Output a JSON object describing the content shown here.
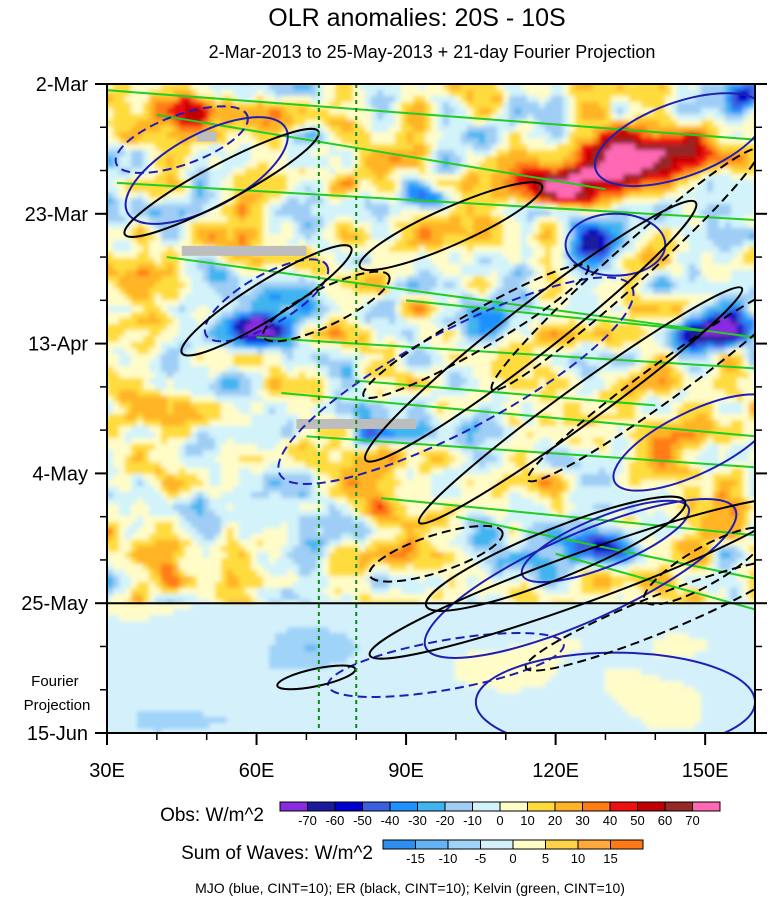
{
  "chart_data": {
    "type": "heatmap",
    "title": "OLR anomalies: 20S - 10S",
    "subtitle": "2-Mar-2013 to 25-May-2013 + 21-day Fourier Projection",
    "x_axis": {
      "range": [
        30,
        160
      ],
      "ticks": [
        30,
        60,
        90,
        120,
        150
      ],
      "tick_labels": [
        "30E",
        "60E",
        "90E",
        "120E",
        "150E"
      ],
      "minor_ticks": [
        40,
        50,
        70,
        80,
        100,
        110,
        130,
        140
      ]
    },
    "y_axis": {
      "start_date": "2-Mar",
      "days_total": 105,
      "ticks_day": [
        0,
        21,
        42,
        63,
        84,
        105
      ],
      "tick_labels": [
        "2-Mar",
        "23-Mar",
        "13-Apr",
        "4-May",
        "25-May",
        "15-Jun"
      ],
      "minor_ticks_day": [
        7,
        14,
        28,
        35,
        49,
        56,
        70,
        77,
        91,
        98
      ]
    },
    "observation_end_day": 84,
    "projection_label_lines": [
      "Fourier",
      "Projection"
    ],
    "reference_lines_lon": [
      72.5,
      80
    ],
    "obs_colorbar": {
      "label": "Obs: W/m^2",
      "levels": [
        -70,
        -60,
        -50,
        -40,
        -30,
        -20,
        -10,
        0,
        10,
        20,
        30,
        40,
        50,
        60,
        70
      ],
      "colors": [
        "#8a2be2",
        "#1a1a9c",
        "#0000cd",
        "#3a5fe0",
        "#1e90ff",
        "#3fb4f0",
        "#9fcdf5",
        "#d2f3fa",
        "#fffcc8",
        "#ffdc3c",
        "#ffb428",
        "#ff7c14",
        "#ee1010",
        "#c00000",
        "#962828",
        "#ff69b4"
      ]
    },
    "waves_colorbar": {
      "label": "Sum of Waves: W/m^2",
      "levels": [
        -15,
        -10,
        -5,
        0,
        5,
        10,
        15
      ],
      "colors": [
        "#2e8ef0",
        "#64b4f5",
        "#9fd3f8",
        "#d4f1fb",
        "#fffcc8",
        "#ffd24a",
        "#ffaa3a",
        "#ff7a14"
      ]
    },
    "overlay_legend": "MJO (blue, CINT=10); ER (black, CINT=10); Kelvin (green, CINT=10)",
    "series": [
      {
        "name": "MJO",
        "color": "#1f1fb4",
        "cint": 10
      },
      {
        "name": "ER",
        "color": "#000000",
        "cint": 10
      },
      {
        "name": "Kelvin",
        "color": "#22cc22",
        "cint": 10
      }
    ]
  }
}
